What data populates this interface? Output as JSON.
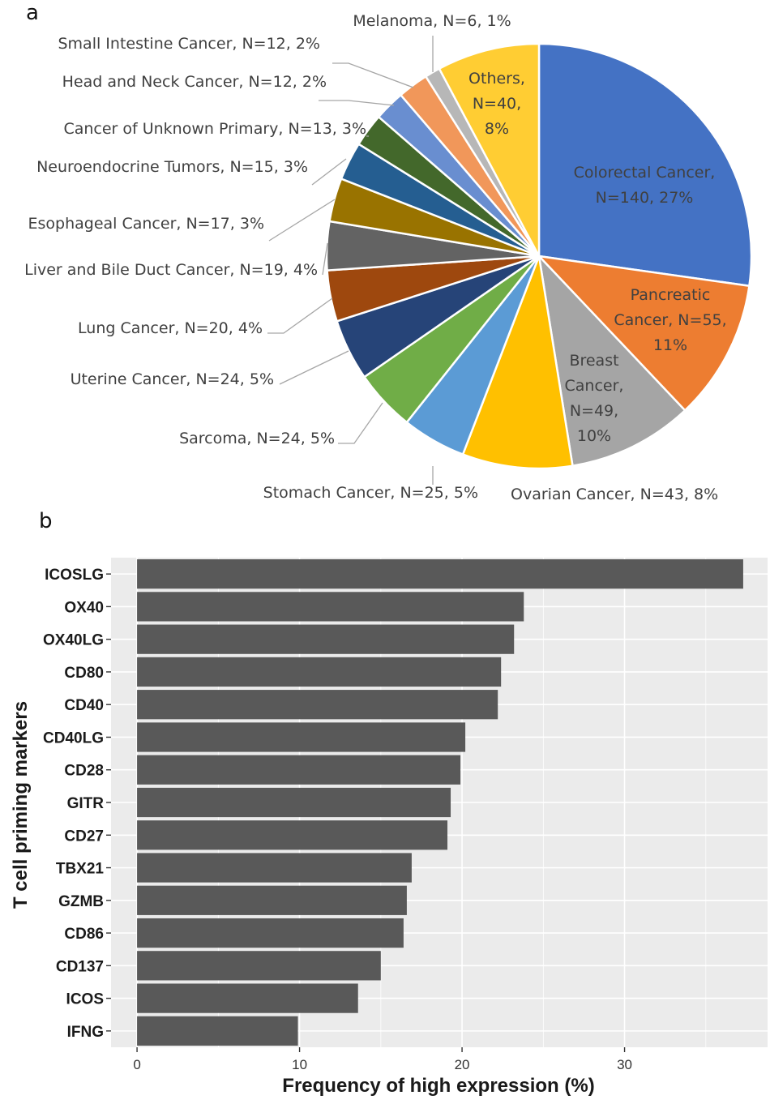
{
  "figure": {
    "panel_a_label": "a",
    "panel_b_label": "b"
  },
  "chart_data": [
    {
      "type": "pie",
      "slices": [
        {
          "name": "Colorectal Cancer",
          "n": 140,
          "pct": 27,
          "label": "Colorectal Cancer, N=140, 27%",
          "inner_lines": [
            "Colorectal Cancer,",
            "N=140, 27%"
          ],
          "color": "#4472C4"
        },
        {
          "name": "Pancreatic Cancer",
          "n": 55,
          "pct": 11,
          "label": "Pancreatic Cancer, N=55, 11%",
          "inner_lines": [
            "Pancreatic",
            "Cancer, N=55,",
            "11%"
          ],
          "color": "#ED7D31"
        },
        {
          "name": "Breast Cancer",
          "n": 49,
          "pct": 10,
          "label": "Breast Cancer, N=49, 10%",
          "inner_lines": [
            "Breast",
            "Cancer,",
            "N=49,",
            "10%"
          ],
          "color": "#A5A5A5"
        },
        {
          "name": "Ovarian Cancer",
          "n": 43,
          "pct": 8,
          "label": "Ovarian Cancer, N=43, 8%",
          "color": "#FFC000"
        },
        {
          "name": "Stomach Cancer",
          "n": 25,
          "pct": 5,
          "label": "Stomach Cancer, N=25, 5%",
          "color": "#5B9BD5"
        },
        {
          "name": "Sarcoma",
          "n": 24,
          "pct": 5,
          "label": "Sarcoma, N=24, 5%",
          "color": "#70AD47"
        },
        {
          "name": "Uterine Cancer",
          "n": 24,
          "pct": 5,
          "label": "Uterine Cancer, N=24, 5%",
          "color": "#264478"
        },
        {
          "name": "Lung Cancer",
          "n": 20,
          "pct": 4,
          "label": "Lung Cancer, N=20, 4%",
          "color": "#9E480E"
        },
        {
          "name": "Liver and Bile Duct Cancer",
          "n": 19,
          "pct": 4,
          "label": "Liver and Bile Duct Cancer, N=19, 4%",
          "color": "#636363"
        },
        {
          "name": "Esophageal Cancer",
          "n": 17,
          "pct": 3,
          "label": "Esophageal Cancer, N=17, 3%",
          "color": "#997300"
        },
        {
          "name": "Neuroendocrine Tumors",
          "n": 15,
          "pct": 3,
          "label": "Neuroendocrine Tumors, N=15, 3%",
          "color": "#255E91"
        },
        {
          "name": "Cancer of Unknown Primary",
          "n": 13,
          "pct": 3,
          "label": "Cancer of Unknown Primary, N=13, 3%",
          "color": "#43682B"
        },
        {
          "name": "Head and Neck Cancer",
          "n": 12,
          "pct": 2,
          "label": "Head and Neck Cancer, N=12, 2%",
          "color": "#698ED0"
        },
        {
          "name": "Small Intestine Cancer",
          "n": 12,
          "pct": 2,
          "label": "Small Intestine Cancer, N=12, 2%",
          "color": "#F1975A"
        },
        {
          "name": "Melanoma",
          "n": 6,
          "pct": 1,
          "label": "Melanoma, N=6, 1%",
          "color": "#B7B7B7"
        },
        {
          "name": "Others",
          "n": 40,
          "pct": 8,
          "label": "Others, N=40, 8%",
          "inner_lines": [
            "Others,",
            "N=40,",
            "8%"
          ],
          "color": "#FFCD33"
        }
      ]
    },
    {
      "type": "bar",
      "orientation": "horizontal",
      "categories": [
        "ICOSLG",
        "OX40",
        "OX40LG",
        "CD80",
        "CD40",
        "CD40LG",
        "CD28",
        "GITR",
        "CD27",
        "TBX21",
        "GZMB",
        "CD86",
        "CD137",
        "ICOS",
        "IFNG"
      ],
      "values": [
        37.3,
        23.8,
        23.2,
        22.4,
        22.2,
        20.2,
        19.9,
        19.3,
        19.1,
        16.9,
        16.6,
        16.4,
        15.0,
        13.6,
        9.9
      ],
      "xlabel": "Frequency of high expression (%)",
      "ylabel": "T cell priming markers",
      "xticks": [
        0,
        10,
        20,
        30
      ],
      "xlim": [
        -1.6,
        38.8
      ],
      "bar_color": "#595959",
      "panel_background": "#EBEBEB",
      "grid": true
    }
  ]
}
